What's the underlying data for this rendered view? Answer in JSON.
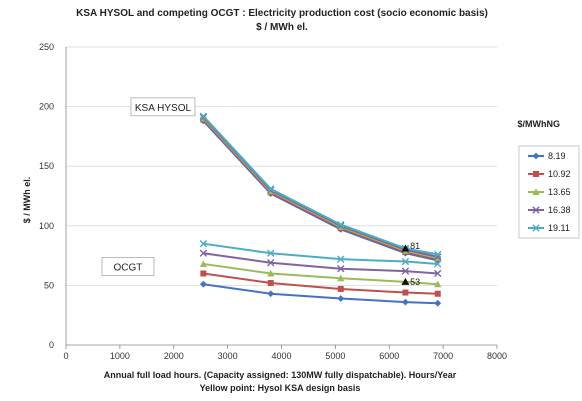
{
  "chart_data": {
    "type": "line",
    "title": "KSA HYSOL  and  competing OCGT : Electricity production cost (socio economic basis)",
    "subtitle": "$ / MWh el.",
    "xlabel": "Annual full load hours. (Capacity assigned: 130MW fully dispatchable).    Hours/Year",
    "xlabel2": "Yellow point: Hysol KSA design basis",
    "ylabel": "$ / MWh el.",
    "xlim": [
      0,
      8000
    ],
    "ylim": [
      0,
      250
    ],
    "xticks": [
      0,
      1000,
      2000,
      3000,
      4000,
      5000,
      6000,
      7000,
      8000
    ],
    "yticks": [
      0,
      50,
      100,
      150,
      200,
      250
    ],
    "grid": "horizontal",
    "legend_title": "$/MWhNG",
    "legend_position": "right",
    "x": [
      2550,
      3800,
      5100,
      6300,
      6900
    ],
    "series": [
      {
        "name": "8.19",
        "color": "#4472c4",
        "marker": "diamond",
        "hysol": [
          188,
          127,
          97,
          77,
          71
        ],
        "ocgt": [
          51,
          43,
          39,
          36,
          35
        ]
      },
      {
        "name": "10.92",
        "color": "#c0504d",
        "marker": "square",
        "hysol": [
          189,
          128,
          98,
          78,
          72
        ],
        "ocgt": [
          60,
          52,
          47,
          44,
          43
        ]
      },
      {
        "name": "13.65",
        "color": "#9bbb59",
        "marker": "triangle",
        "hysol": [
          190,
          129,
          99,
          79,
          73
        ],
        "ocgt": [
          68,
          60,
          56,
          53,
          51
        ]
      },
      {
        "name": "16.38",
        "color": "#8064a2",
        "marker": "x",
        "hysol": [
          191,
          130,
          100,
          80,
          74
        ],
        "ocgt": [
          77,
          69,
          64,
          62,
          60
        ]
      },
      {
        "name": "19.11",
        "color": "#4bacc6",
        "marker": "x",
        "hysol": [
          192,
          131,
          101,
          81,
          76
        ],
        "ocgt": [
          85,
          77,
          72,
          70,
          68
        ]
      }
    ],
    "annotations": [
      {
        "text": "KSA  HYSOL",
        "x": 1800,
        "y": 199
      },
      {
        "text": "OCGT",
        "x": 1150,
        "y": 65
      },
      {
        "text": "81",
        "x": 6350,
        "y": 83
      },
      {
        "text": "53",
        "x": 6350,
        "y": 53
      }
    ],
    "highlight_points": [
      {
        "x": 6300,
        "y": 81
      },
      {
        "x": 6300,
        "y": 53
      }
    ]
  }
}
